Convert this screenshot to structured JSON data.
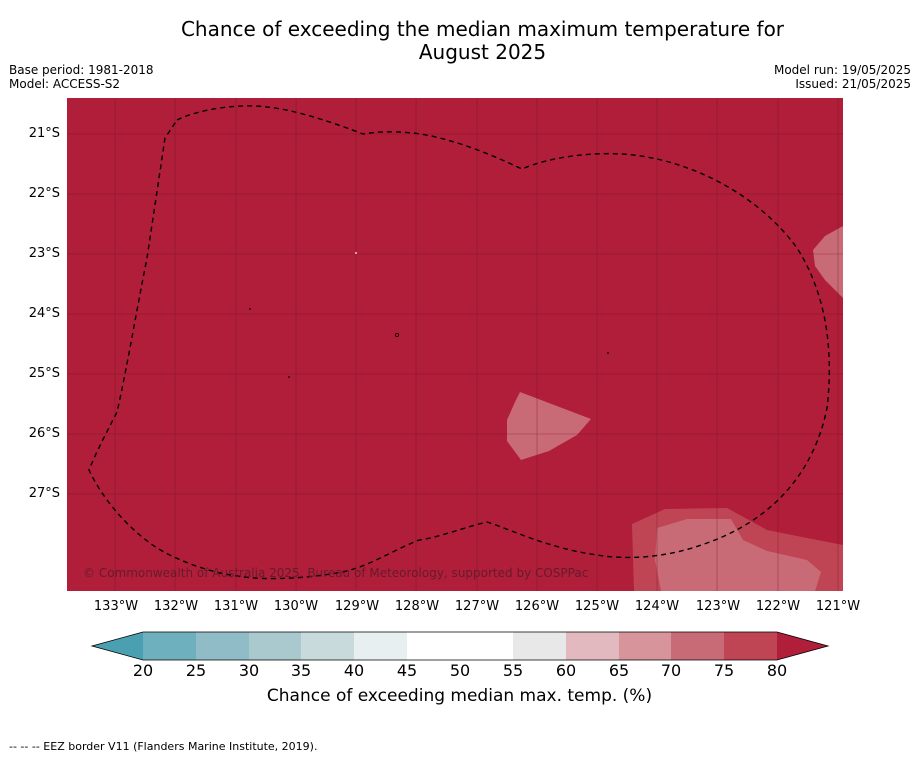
{
  "title_line1": "Chance of exceeding the median maximum temperature for",
  "title_line2": "August 2025",
  "base_period": "Base period: 1981-2018",
  "model": "Model: ACCESS-S2",
  "model_run": "Model run: 19/05/2025",
  "issued": "Issued: 21/05/2025",
  "copyright": "© Commonwealth of Australia 2025, Bureau of Meteorology, supported by COSPPac",
  "lat_labels": [
    "21°S",
    "22°S",
    "23°S",
    "24°S",
    "25°S",
    "26°S",
    "27°S"
  ],
  "lon_labels": [
    "133°W",
    "132°W",
    "131°W",
    "130°W",
    "129°W",
    "128°W",
    "127°W",
    "126°W",
    "125°W",
    "124°W",
    "123°W",
    "122°W",
    "121°W"
  ],
  "colorbar": {
    "ticks": [
      "20",
      "25",
      "30",
      "35",
      "40",
      "45",
      "50",
      "55",
      "60",
      "65",
      "70",
      "75",
      "80"
    ],
    "colors": [
      "#4a9fb0",
      "#6fb0bf",
      "#8fbcc7",
      "#aac9ce",
      "#c9dadd",
      "#e7eff0",
      "#ffffff",
      "#ffffff",
      "#e8e8e8",
      "#e2b9bf",
      "#d8949b",
      "#c96a77",
      "#bf4555",
      "#b01e3a"
    ],
    "label": "Chance of exceeding median max. temp. (%)"
  },
  "map_colors": {
    "dominant": "#b01e3a",
    "band_75_80": "#bf4555",
    "band_70_75": "#c96a77"
  },
  "footnote": "--  --  -- EEZ border V11 (Flanders Marine Institute, 2019)."
}
